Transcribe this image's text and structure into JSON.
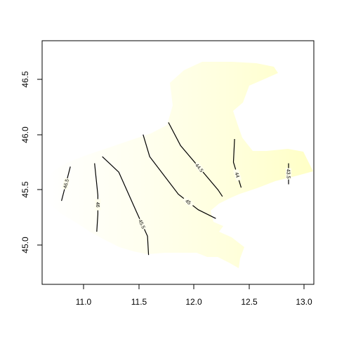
{
  "chart_data": {
    "type": "contour-map",
    "title": "",
    "xlabel": "",
    "ylabel": "",
    "xlim": [
      10.7,
      13.1
    ],
    "ylim": [
      44.63,
      46.85
    ],
    "x_ticks": [
      "11.0",
      "11.5",
      "12.0",
      "12.5",
      "13.0"
    ],
    "y_ticks": [
      "45.0",
      "45.5",
      "46.0",
      "46.5"
    ],
    "region_fill": "#ffffcc",
    "contour_levels": [
      {
        "level": "46.5",
        "points": [
          [
            10.8,
            45.4
          ],
          [
            10.88,
            45.71
          ]
        ]
      },
      {
        "level": "46",
        "points": [
          [
            11.1,
            45.74
          ],
          [
            11.13,
            45.45
          ],
          [
            11.13,
            45.28
          ],
          [
            11.12,
            45.12
          ]
        ]
      },
      {
        "level": "45.5",
        "points": [
          [
            11.17,
            45.8
          ],
          [
            11.32,
            45.66
          ],
          [
            11.48,
            45.3
          ],
          [
            11.58,
            45.08
          ],
          [
            11.59,
            44.91
          ]
        ]
      },
      {
        "level": "45",
        "points": [
          [
            11.54,
            46.0
          ],
          [
            11.6,
            45.8
          ],
          [
            11.86,
            45.46
          ],
          [
            12.04,
            45.32
          ],
          [
            12.2,
            45.24
          ]
        ]
      },
      {
        "level": "44.5",
        "points": [
          [
            11.77,
            46.11
          ],
          [
            11.88,
            45.9
          ],
          [
            12.22,
            45.5
          ],
          [
            12.26,
            45.44
          ]
        ]
      },
      {
        "level": "44",
        "points": [
          [
            12.37,
            45.96
          ],
          [
            12.36,
            45.75
          ],
          [
            12.43,
            45.52
          ]
        ]
      },
      {
        "level": "43.5",
        "points": [
          [
            12.86,
            45.74
          ],
          [
            12.86,
            45.55
          ]
        ]
      }
    ],
    "contour_label_text": {
      "46.5": "46.5",
      "46": "46",
      "45.5": "45.5",
      "45": "45",
      "44.5": "44.5",
      "44": "44",
      "43.5": "43.5"
    }
  }
}
